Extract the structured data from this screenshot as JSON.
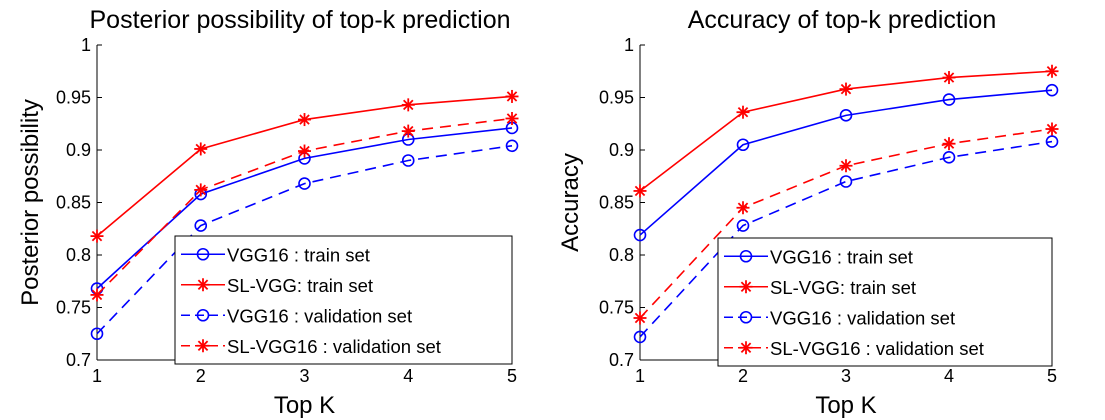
{
  "colors": {
    "blue": "#0000ff",
    "red": "#ff0000",
    "axis": "#000000",
    "background": "#ffffff"
  },
  "legend_entries": [
    {
      "label": "VGG16 : train set",
      "color": "#0000ff",
      "marker": "o",
      "linestyle": "solid"
    },
    {
      "label": "SL-VGG: train set",
      "color": "#ff0000",
      "marker": "*",
      "linestyle": "solid"
    },
    {
      "label": "VGG16 : validation set",
      "color": "#0000ff",
      "marker": "o",
      "linestyle": "dashed"
    },
    {
      "label": "SL-VGG16 : validation set",
      "color": "#ff0000",
      "marker": "*",
      "linestyle": "dashed"
    }
  ],
  "chart_data": [
    {
      "type": "line",
      "title": "Posterior possibility of top-k prediction",
      "xlabel": "Top K",
      "ylabel": "Posterior possibility",
      "x": [
        1,
        2,
        3,
        4,
        5
      ],
      "xlim": [
        1,
        5
      ],
      "ylim": [
        0.7,
        1
      ],
      "xticks": [
        "1",
        "2",
        "3",
        "4",
        "5"
      ],
      "yticks": [
        "0.7",
        "0.75",
        "0.8",
        "0.85",
        "0.9",
        "0.95",
        "1"
      ],
      "legend_position": "bottom-right",
      "grid": false,
      "series": [
        {
          "name": "VGG16 : train set",
          "values": [
            0.768,
            0.858,
            0.892,
            0.91,
            0.921
          ]
        },
        {
          "name": "SL-VGG: train set",
          "values": [
            0.818,
            0.901,
            0.929,
            0.943,
            0.951
          ]
        },
        {
          "name": "VGG16 : validation set",
          "values": [
            0.725,
            0.828,
            0.868,
            0.89,
            0.904
          ]
        },
        {
          "name": "SL-VGG16 : validation set",
          "values": [
            0.762,
            0.862,
            0.899,
            0.918,
            0.93
          ]
        }
      ]
    },
    {
      "type": "line",
      "title": "Accuracy of top-k prediction",
      "xlabel": "Top K",
      "ylabel": "Accuracy",
      "x": [
        1,
        2,
        3,
        4,
        5
      ],
      "xlim": [
        1,
        5
      ],
      "ylim": [
        0.7,
        1
      ],
      "xticks": [
        "1",
        "2",
        "3",
        "4",
        "5"
      ],
      "yticks": [
        "0.7",
        "0.75",
        "0.8",
        "0.85",
        "0.9",
        "0.95",
        "1"
      ],
      "legend_position": "bottom-right",
      "grid": false,
      "series": [
        {
          "name": "VGG16 : train set",
          "values": [
            0.819,
            0.905,
            0.933,
            0.948,
            0.957
          ]
        },
        {
          "name": "SL-VGG: train set",
          "values": [
            0.861,
            0.936,
            0.958,
            0.969,
            0.975
          ]
        },
        {
          "name": "VGG16 : validation set",
          "values": [
            0.722,
            0.828,
            0.87,
            0.893,
            0.908
          ]
        },
        {
          "name": "SL-VGG16 : validation set",
          "values": [
            0.74,
            0.845,
            0.885,
            0.906,
            0.92
          ]
        }
      ]
    }
  ]
}
